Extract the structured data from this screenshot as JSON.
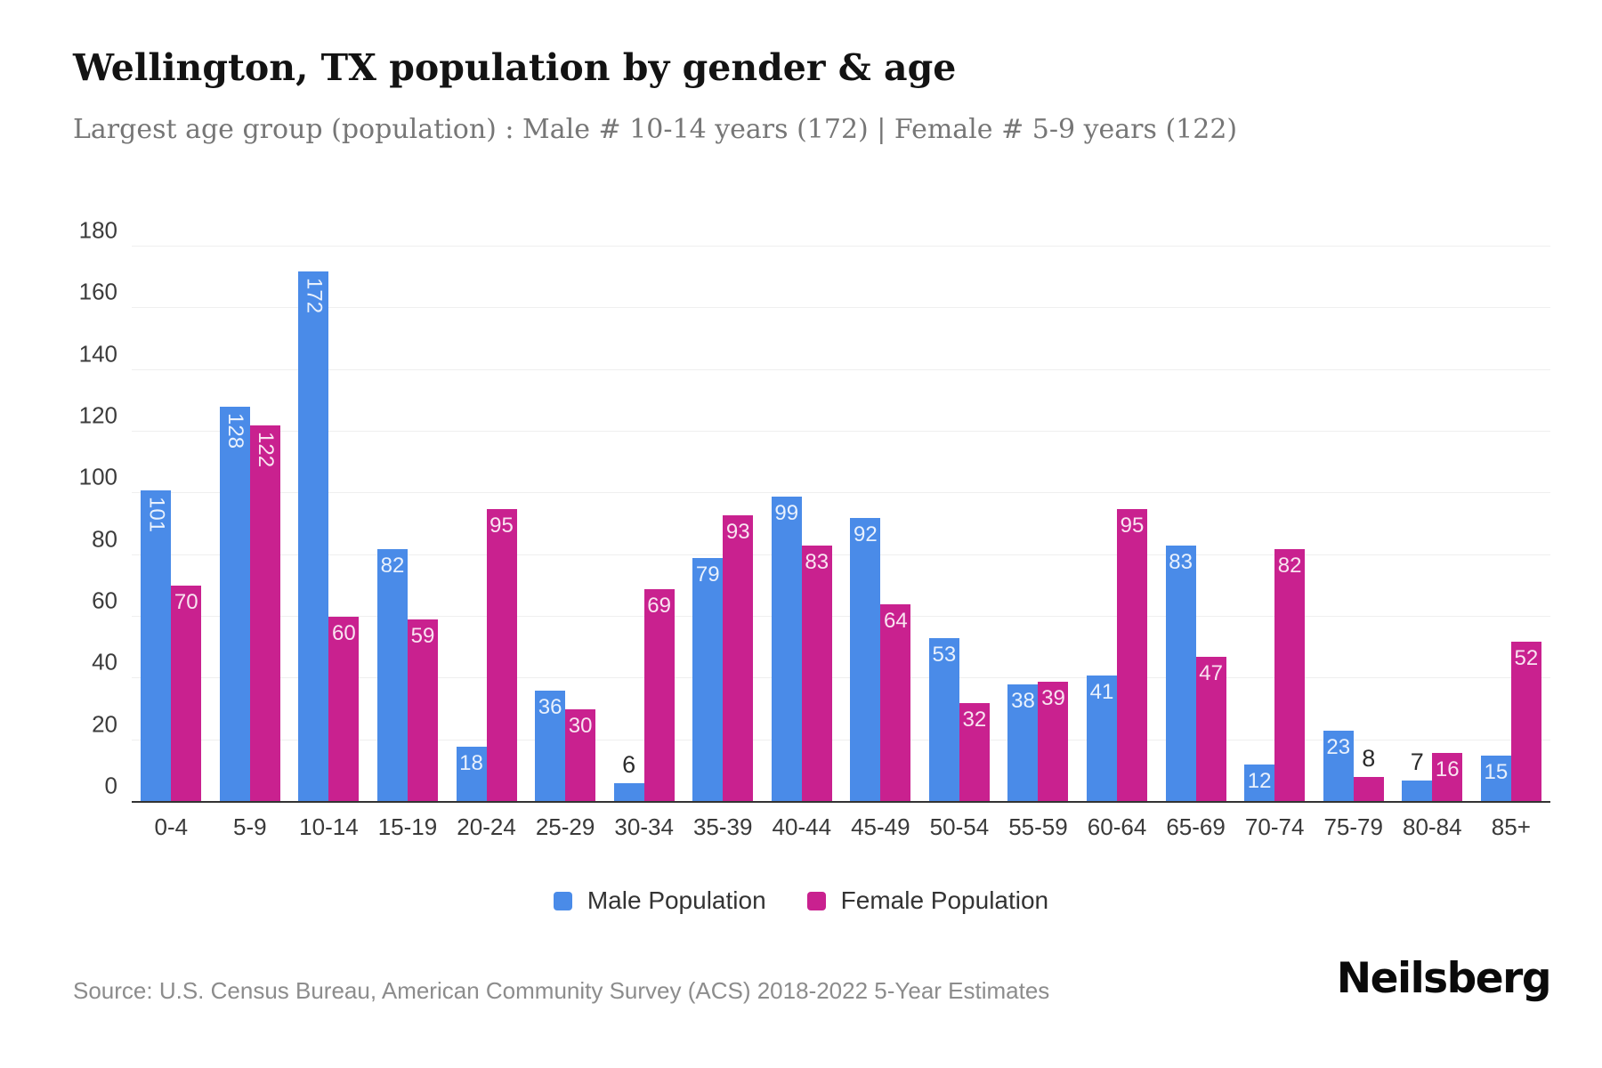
{
  "header": {
    "title": "Wellington, TX population by gender & age",
    "subtitle": "Largest age group (population) : Male # 10-14 years (172) | Female # 5-9 years (122)"
  },
  "chart_data": {
    "type": "bar",
    "title": "Wellington, TX population by gender & age",
    "xlabel": "",
    "ylabel": "",
    "categories": [
      "0-4",
      "5-9",
      "10-14",
      "15-19",
      "20-24",
      "25-29",
      "30-34",
      "35-39",
      "40-44",
      "45-49",
      "50-54",
      "55-59",
      "60-64",
      "65-69",
      "70-74",
      "75-79",
      "80-84",
      "85+"
    ],
    "series": [
      {
        "name": "Male Population",
        "color": "#4A8BE8",
        "values": [
          101,
          128,
          172,
          82,
          18,
          36,
          6,
          79,
          99,
          92,
          53,
          38,
          41,
          83,
          12,
          23,
          7,
          15
        ]
      },
      {
        "name": "Female Population",
        "color": "#C9218F",
        "values": [
          70,
          122,
          60,
          59,
          95,
          30,
          69,
          93,
          83,
          64,
          32,
          39,
          95,
          47,
          82,
          8,
          16,
          52
        ]
      }
    ],
    "ylim": [
      0,
      180
    ],
    "ytick_step": 20,
    "grid": "horizontal",
    "legend_position": "bottom"
  },
  "footer": {
    "source": "Source: U.S. Census Bureau, American Community Survey (ACS) 2018-2022 5-Year Estimates",
    "brand": "Neilsberg"
  }
}
